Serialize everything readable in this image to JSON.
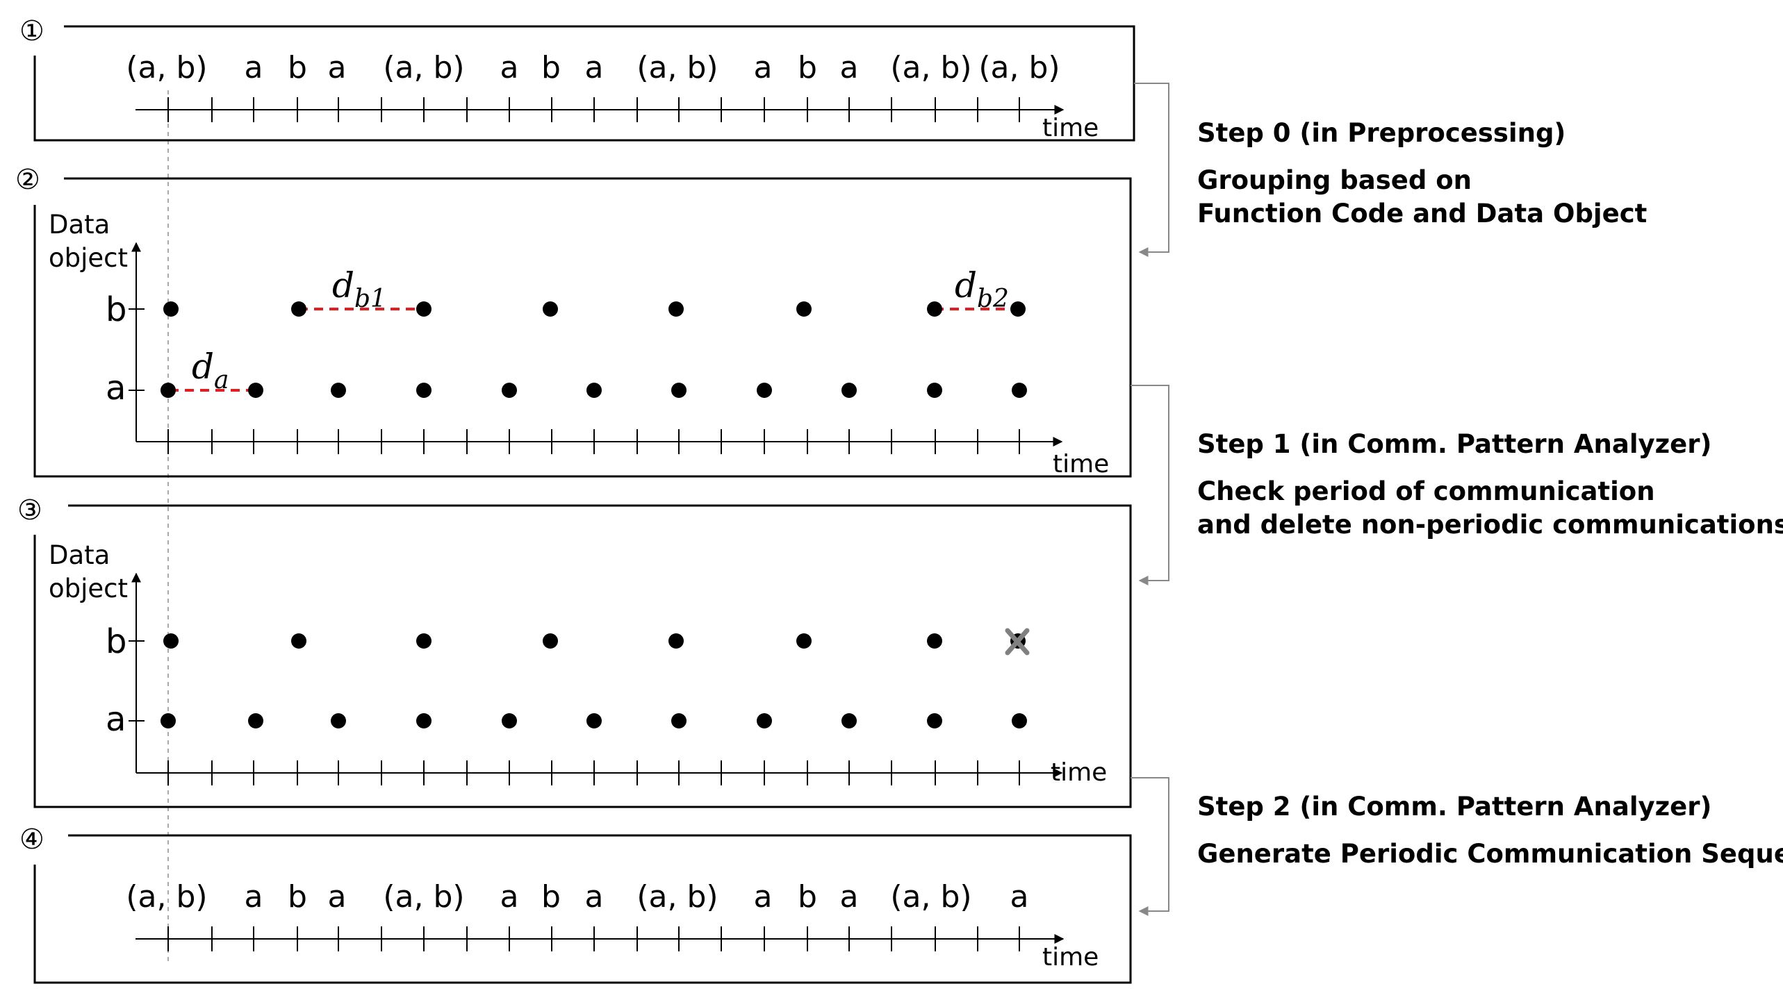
{
  "panels": {
    "p1": {
      "number": "①"
    },
    "p2": {
      "number": "②"
    },
    "p3": {
      "number": "③"
    },
    "p4": {
      "number": "④"
    }
  },
  "time_label": "time",
  "y_axis_label_line1": "Data",
  "y_axis_label_line2": "object",
  "row_labels": {
    "b": "b",
    "a": "a"
  },
  "sequence_original": [
    "(a, b)",
    "a",
    "b",
    "a",
    "(a, b)",
    "a",
    "b",
    "a",
    "(a, b)",
    "a",
    "b",
    "a",
    "(a, b)",
    "(a, b)"
  ],
  "sequence_generated": [
    "(a, b)",
    "a",
    "b",
    "a",
    "(a, b)",
    "a",
    "b",
    "a",
    "(a, b)",
    "a",
    "b",
    "a",
    "(a, b)",
    "a"
  ],
  "distance_labels": {
    "da": "d",
    "da_sub": "a",
    "db1": "d",
    "db1_sub": "b1",
    "db2": "d",
    "db2_sub": "b2"
  },
  "steps": [
    {
      "title": "Step 0 (in Preprocessing)",
      "desc": [
        "Grouping based on",
        "Function Code and Data Object"
      ]
    },
    {
      "title": "Step 1 (in Comm. Pattern Analyzer)",
      "desc": [
        "Check period of communication",
        "and delete non-periodic communications"
      ]
    },
    {
      "title": "Step 2 (in Comm. Pattern Analyzer)",
      "desc": [
        "Generate Periodic Communication Sequence"
      ]
    }
  ],
  "colors": {
    "line": "#000000",
    "dashed_distance": "#e02020",
    "arrow_gray": "#888888",
    "guide_gray": "#aaaaaa",
    "removed_mark": "#808080"
  }
}
